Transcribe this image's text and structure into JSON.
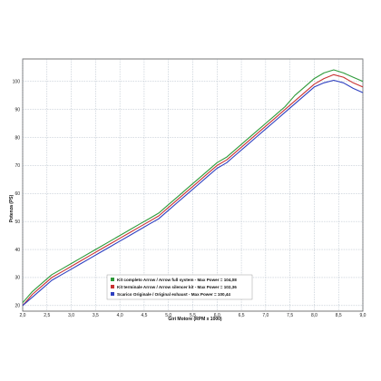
{
  "chart_data": {
    "type": "line",
    "xlabel": "Giri Motore (RPM x 1000)",
    "ylabel": "Potenza (PS)",
    "xlim": [
      2.0,
      9.0
    ],
    "ylim": [
      18,
      108
    ],
    "x_ticks": [
      "2,0",
      "2,5",
      "3,0",
      "3,5",
      "4,0",
      "4,5",
      "5,0",
      "5,5",
      "6,0",
      "6,5",
      "7,0",
      "7,5",
      "8,0",
      "8,5",
      "9,0"
    ],
    "y_ticks": [
      "20",
      "30",
      "40",
      "50",
      "60",
      "70",
      "80",
      "90",
      "100"
    ],
    "grid": true,
    "legend_position": "bottom-left",
    "series": [
      {
        "name": "Kit completo Arrow / Arrow full system - Max Power = 104,08",
        "color": "#2e9a3a",
        "points": [
          [
            2.0,
            21
          ],
          [
            2.2,
            25
          ],
          [
            2.4,
            28
          ],
          [
            2.6,
            31
          ],
          [
            2.8,
            33
          ],
          [
            3.0,
            35
          ],
          [
            3.2,
            37
          ],
          [
            3.4,
            39
          ],
          [
            3.6,
            41
          ],
          [
            3.8,
            43
          ],
          [
            4.0,
            45
          ],
          [
            4.2,
            47
          ],
          [
            4.4,
            49
          ],
          [
            4.6,
            51
          ],
          [
            4.8,
            53
          ],
          [
            5.0,
            56
          ],
          [
            5.2,
            59
          ],
          [
            5.4,
            62
          ],
          [
            5.6,
            65
          ],
          [
            5.8,
            68
          ],
          [
            6.0,
            71
          ],
          [
            6.2,
            73
          ],
          [
            6.4,
            76
          ],
          [
            6.6,
            79
          ],
          [
            6.8,
            82
          ],
          [
            7.0,
            85
          ],
          [
            7.2,
            88
          ],
          [
            7.4,
            91
          ],
          [
            7.6,
            95
          ],
          [
            7.8,
            98
          ],
          [
            8.0,
            101
          ],
          [
            8.2,
            103
          ],
          [
            8.4,
            104.1
          ],
          [
            8.6,
            103
          ],
          [
            8.8,
            101.5
          ],
          [
            9.0,
            100
          ]
        ]
      },
      {
        "name": "Kit terminale Arrow / Arrow silencer kit - Max Power = 102,36",
        "color": "#c83232",
        "points": [
          [
            2.0,
            20
          ],
          [
            2.2,
            24
          ],
          [
            2.4,
            27
          ],
          [
            2.6,
            30
          ],
          [
            2.8,
            32
          ],
          [
            3.0,
            34
          ],
          [
            3.2,
            36
          ],
          [
            3.4,
            38
          ],
          [
            3.6,
            40
          ],
          [
            3.8,
            42
          ],
          [
            4.0,
            44
          ],
          [
            4.2,
            46
          ],
          [
            4.4,
            48
          ],
          [
            4.6,
            50
          ],
          [
            4.8,
            52
          ],
          [
            5.0,
            55
          ],
          [
            5.2,
            58
          ],
          [
            5.4,
            61
          ],
          [
            5.6,
            64
          ],
          [
            5.8,
            67
          ],
          [
            6.0,
            70
          ],
          [
            6.2,
            72
          ],
          [
            6.4,
            75
          ],
          [
            6.6,
            78
          ],
          [
            6.8,
            81
          ],
          [
            7.0,
            84
          ],
          [
            7.2,
            87
          ],
          [
            7.4,
            90
          ],
          [
            7.6,
            93
          ],
          [
            7.8,
            96
          ],
          [
            8.0,
            99
          ],
          [
            8.2,
            101
          ],
          [
            8.4,
            102.4
          ],
          [
            8.6,
            101.5
          ],
          [
            8.8,
            99.5
          ],
          [
            9.0,
            98
          ]
        ]
      },
      {
        "name": "Scarico Originale / Original exhaust - Max Power = 100,44",
        "color": "#2e3fc0",
        "points": [
          [
            2.0,
            20
          ],
          [
            2.2,
            23
          ],
          [
            2.4,
            26
          ],
          [
            2.6,
            29
          ],
          [
            2.8,
            31
          ],
          [
            3.0,
            33
          ],
          [
            3.2,
            35
          ],
          [
            3.4,
            37
          ],
          [
            3.6,
            39
          ],
          [
            3.8,
            41
          ],
          [
            4.0,
            43
          ],
          [
            4.2,
            45
          ],
          [
            4.4,
            47
          ],
          [
            4.6,
            49
          ],
          [
            4.8,
            51
          ],
          [
            5.0,
            54
          ],
          [
            5.2,
            57
          ],
          [
            5.4,
            60
          ],
          [
            5.6,
            63
          ],
          [
            5.8,
            66
          ],
          [
            6.0,
            69
          ],
          [
            6.2,
            71
          ],
          [
            6.4,
            74
          ],
          [
            6.6,
            77
          ],
          [
            6.8,
            80
          ],
          [
            7.0,
            83
          ],
          [
            7.2,
            86
          ],
          [
            7.4,
            89
          ],
          [
            7.6,
            92
          ],
          [
            7.8,
            95
          ],
          [
            8.0,
            98
          ],
          [
            8.2,
            99.5
          ],
          [
            8.4,
            100.4
          ],
          [
            8.6,
            99.5
          ],
          [
            8.8,
            97.5
          ],
          [
            9.0,
            96
          ]
        ]
      }
    ]
  }
}
